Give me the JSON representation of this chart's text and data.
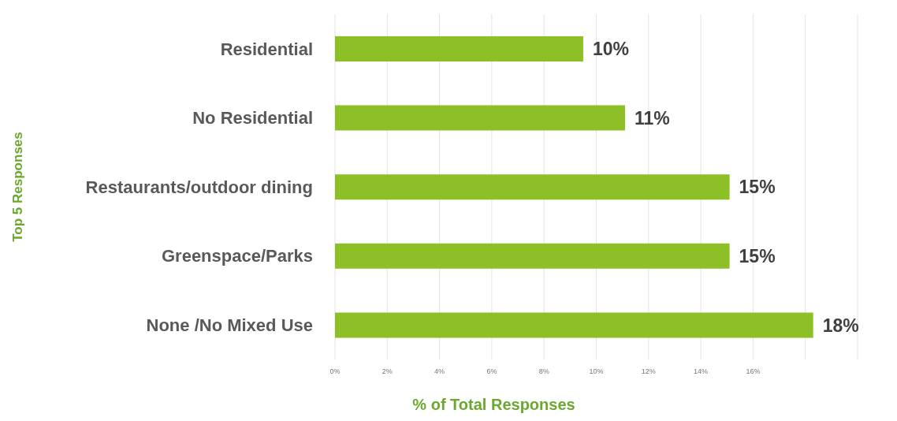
{
  "chart_data": {
    "type": "bar",
    "orientation": "horizontal",
    "xlabel": "% of Total Responses",
    "ylabel": "Top 5 Responses",
    "categories": [
      "Residential",
      "No Residential",
      "Restaurants/outdoor dining",
      "Greenspace/Parks",
      "None /No Mixed Use"
    ],
    "values": [
      9.5,
      11.1,
      15.1,
      15.1,
      18.3
    ],
    "value_labels": [
      "10%",
      "11%",
      "15%",
      "15%",
      "18%"
    ],
    "color": "#8dc027",
    "xlim": [
      0,
      20
    ],
    "xticks": [
      {
        "value": 0,
        "label": "0%"
      },
      {
        "value": 2,
        "label": "2%"
      },
      {
        "value": 4,
        "label": "4%"
      },
      {
        "value": 6,
        "label": "6%"
      },
      {
        "value": 8,
        "label": "8%"
      },
      {
        "value": 10,
        "label": "10%"
      },
      {
        "value": 12,
        "label": "12%"
      },
      {
        "value": 14,
        "label": "14%"
      },
      {
        "value": 16,
        "label": "16%"
      },
      {
        "value": 18,
        "label": null
      },
      {
        "value": 20,
        "label": null
      }
    ],
    "grid": "x",
    "legend": false
  }
}
